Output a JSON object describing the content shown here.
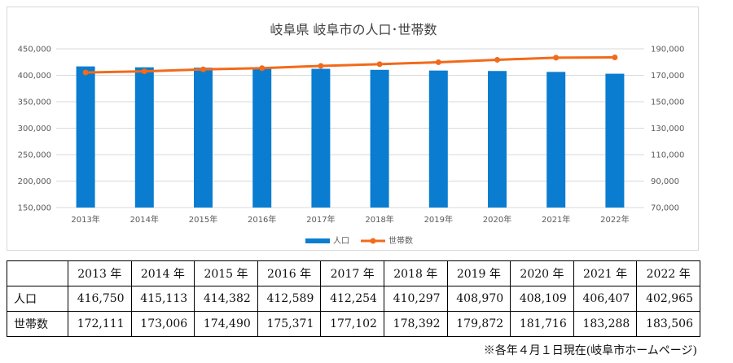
{
  "chart_data": {
    "type": "bar",
    "title": "岐阜県 岐阜市の人口･世帯数",
    "categories": [
      "2013年",
      "2014年",
      "2015年",
      "2016年",
      "2017年",
      "2018年",
      "2019年",
      "2020年",
      "2021年",
      "2022年"
    ],
    "series": [
      {
        "name": "人口",
        "type": "bar",
        "axis": "left",
        "color": "#0a7dd0",
        "values": [
          416750,
          415113,
          414382,
          412589,
          412254,
          410297,
          408970,
          408109,
          406407,
          402965
        ]
      },
      {
        "name": "世帯数",
        "type": "line",
        "axis": "right",
        "color": "#f26a1b",
        "values": [
          172111,
          173006,
          174490,
          175371,
          177102,
          178392,
          179872,
          181716,
          183288,
          183506
        ]
      }
    ],
    "y_left": {
      "min": 150000,
      "max": 450000,
      "step": 50000,
      "ticks": [
        "150,000",
        "200,000",
        "250,000",
        "300,000",
        "350,000",
        "400,000",
        "450,000"
      ]
    },
    "y_right": {
      "min": 70000,
      "max": 190000,
      "step": 20000,
      "ticks": [
        "70,000",
        "90,000",
        "110,000",
        "130,000",
        "150,000",
        "170,000",
        "190,000"
      ]
    },
    "grid": true,
    "legend_position": "bottom"
  },
  "table": {
    "headers": [
      "2013 年",
      "2014 年",
      "2015 年",
      "2016 年",
      "2017 年",
      "2018 年",
      "2019 年",
      "2020 年",
      "2021 年",
      "2022 年"
    ],
    "rows": [
      {
        "label": "人口",
        "cells": [
          "416,750",
          "415,113",
          "414,382",
          "412,589",
          "412,254",
          "410,297",
          "408,970",
          "408,109",
          "406,407",
          "402,965"
        ]
      },
      {
        "label": "世帯数",
        "cells": [
          "172,111",
          "173,006",
          "174,490",
          "175,371",
          "177,102",
          "178,392",
          "179,872",
          "181,716",
          "183,288",
          "183,506"
        ]
      }
    ]
  },
  "footnote": "※各年４月１日現在(岐阜市ホームページ)"
}
